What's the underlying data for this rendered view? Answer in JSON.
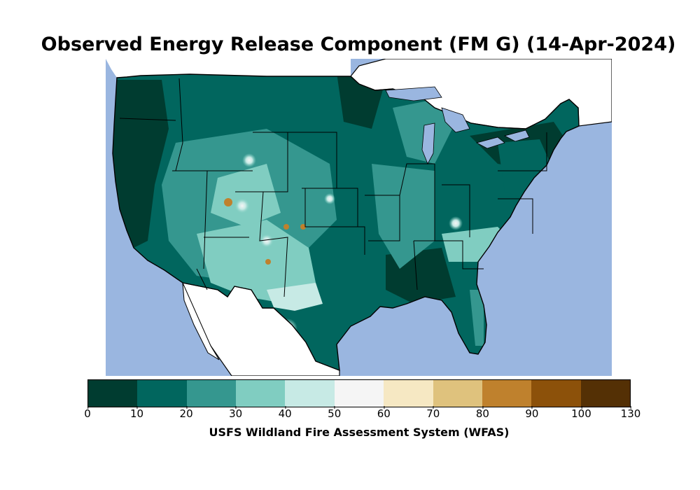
{
  "title": "Observed Energy Release Component (FM G) (14-Apr-2024)",
  "colorbar": {
    "label": "USFS Wildland Fire Assessment System (WFAS)",
    "ticks": [
      "0",
      "10",
      "20",
      "30",
      "40",
      "50",
      "60",
      "70",
      "80",
      "90",
      "100",
      "130"
    ],
    "colors": [
      "#003c30",
      "#01665e",
      "#35978f",
      "#80cdc1",
      "#c7eae5",
      "#f5f5f5",
      "#f6e8c3",
      "#dfc27d",
      "#bf812d",
      "#8c510a",
      "#543005"
    ]
  },
  "map": {
    "ocean_color": "#9ab6e0",
    "land_color": "#ffffff",
    "region": "Contiguous United States"
  }
}
